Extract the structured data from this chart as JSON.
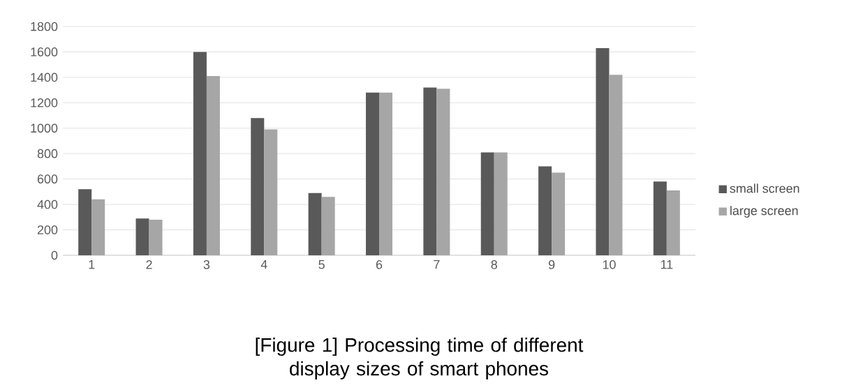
{
  "chart_data": {
    "type": "bar",
    "title": "[Figure 1]  Processing time of different display sizes of smart phones",
    "categories": [
      "1",
      "2",
      "3",
      "4",
      "5",
      "6",
      "7",
      "8",
      "9",
      "10",
      "11"
    ],
    "series": [
      {
        "name": "small screen",
        "color": "#595959",
        "values": [
          520,
          290,
          1600,
          1080,
          490,
          1280,
          1320,
          810,
          700,
          1630,
          580
        ]
      },
      {
        "name": "large screen",
        "color": "#a6a6a6",
        "values": [
          440,
          280,
          1410,
          990,
          460,
          1280,
          1310,
          810,
          650,
          1420,
          510
        ]
      }
    ],
    "ylim": [
      0,
      1800
    ],
    "yticks": [
      0,
      200,
      400,
      600,
      800,
      1000,
      1200,
      1400,
      1600,
      1800
    ],
    "grid": "y",
    "legend": "right"
  }
}
